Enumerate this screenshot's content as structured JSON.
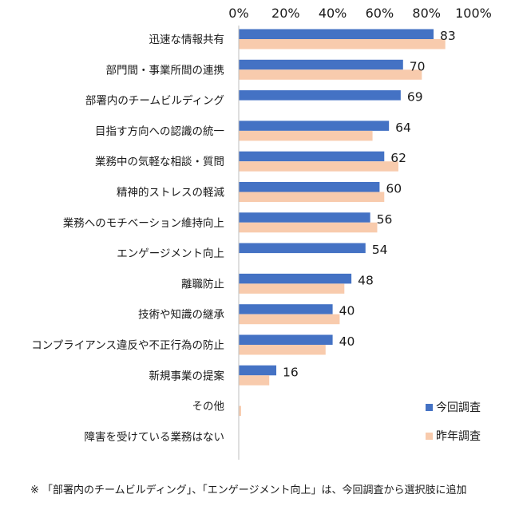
{
  "chart_data": {
    "type": "bar",
    "orientation": "horizontal",
    "title": "",
    "xlabel": "",
    "ylabel": "",
    "xlim": [
      0,
      100
    ],
    "x_ticks": [
      "0%",
      "20%",
      "40%",
      "60%",
      "80%",
      "100%"
    ],
    "x_tick_values": [
      0,
      20,
      40,
      60,
      80,
      100
    ],
    "gridlines": false,
    "legend_position": "bottom-right",
    "categories": [
      "迅速な情報共有",
      "部門間・事業所間の連携",
      "部署内のチームビルディング",
      "目指す方向への認識の統一",
      "業務中の気軽な相談・質問",
      "精神的ストレスの軽減",
      "業務へのモチベーション維持向上",
      "エンゲージメント向上",
      "離職防止",
      "技術や知識の継承",
      "コンプライアンス違反や不正行為の防止",
      "新規事業の提案",
      "その他",
      "障害を受けている業務はない"
    ],
    "series": [
      {
        "name": "今回調査",
        "color": "#4472C4",
        "values": [
          83,
          70,
          69,
          64,
          62,
          60,
          56,
          54,
          48,
          40,
          40,
          16,
          0,
          0
        ],
        "data_labels": [
          "83",
          "70",
          "69",
          "64",
          "62",
          "60",
          "56",
          "54",
          "48",
          "40",
          "40",
          "16",
          "",
          ""
        ]
      },
      {
        "name": "昨年調査",
        "color": "#F8CBAD",
        "values": [
          88,
          78,
          null,
          57,
          68,
          62,
          59,
          null,
          45,
          43,
          37,
          13,
          1,
          0
        ]
      }
    ]
  },
  "footnote": "※ 「部署内のチームビルディング」、「エンゲージメント向上」は、今回調査から選択肢に追加"
}
